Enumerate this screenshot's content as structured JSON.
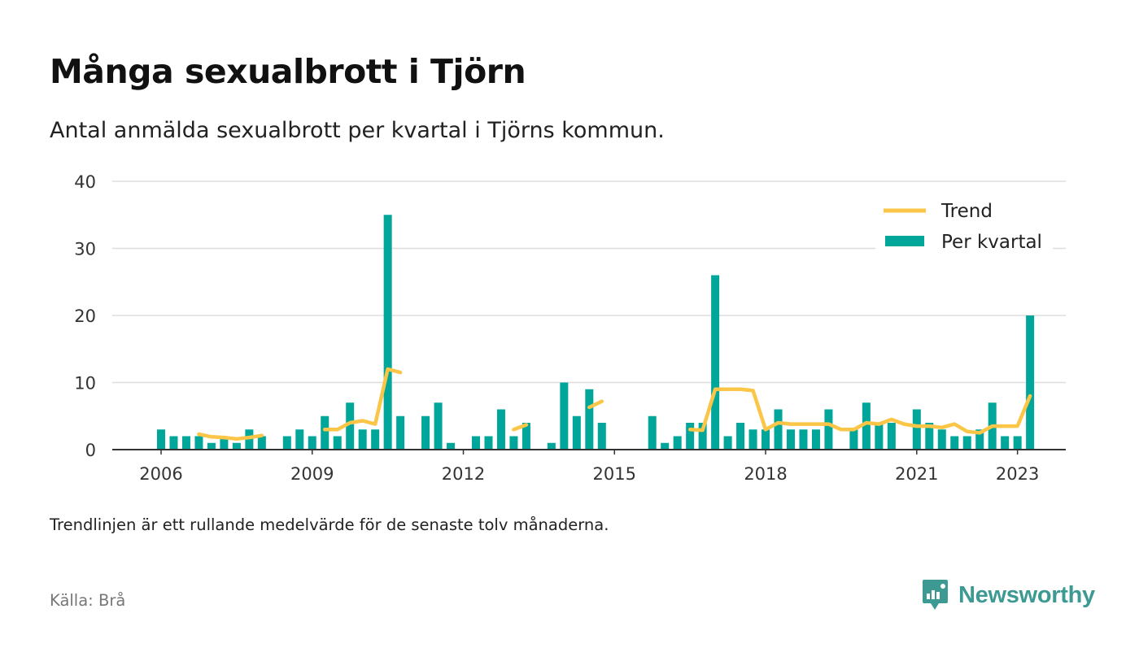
{
  "header": {
    "title": "Många sexualbrott i Tjörn",
    "subtitle": "Antal anmälda sexualbrott per kvartal i Tjörns kommun."
  },
  "footer": {
    "note": "Trendlinjen är ett rullande medelvärde för de senaste tolv månaderna.",
    "source": "Källa: Brå",
    "brand": "Newsworthy"
  },
  "colors": {
    "bars": "#00a69a",
    "trend": "#fbc547",
    "grid": "#dddddd",
    "axis": "#333333",
    "brand": "#3d9a93"
  },
  "chart_data": {
    "type": "bar",
    "x_start_quarter": "2006-Q1",
    "x_ticks": [
      "2006",
      "2009",
      "2012",
      "2015",
      "2018",
      "2021",
      "2023"
    ],
    "y_ticks": [
      0,
      10,
      20,
      30,
      40
    ],
    "ylim": [
      0,
      40
    ],
    "grid": true,
    "legend": {
      "position": "top-right",
      "items": [
        "Trend",
        "Per kvartal"
      ]
    },
    "series": [
      {
        "name": "Per kvartal",
        "kind": "bar",
        "values": [
          3,
          2,
          2,
          2,
          1,
          2,
          1,
          3,
          2,
          null,
          2,
          3,
          2,
          5,
          2,
          7,
          3,
          3,
          35,
          5,
          null,
          5,
          7,
          1,
          null,
          2,
          2,
          6,
          2,
          4,
          null,
          1,
          10,
          5,
          9,
          4,
          null,
          null,
          null,
          5,
          1,
          2,
          4,
          4,
          26,
          2,
          4,
          3,
          3,
          6,
          3,
          3,
          3,
          6,
          null,
          3,
          7,
          4,
          4,
          null,
          6,
          4,
          3,
          2,
          2,
          3,
          7,
          2,
          2,
          20
        ]
      },
      {
        "name": "Trend",
        "kind": "line",
        "values": [
          null,
          null,
          null,
          2.3,
          1.9,
          1.8,
          1.6,
          1.8,
          2.1,
          null,
          null,
          null,
          null,
          3.0,
          3.0,
          4.0,
          4.3,
          3.8,
          12.0,
          11.5,
          null,
          null,
          null,
          null,
          null,
          null,
          null,
          null,
          3.0,
          3.7,
          null,
          null,
          null,
          null,
          6.3,
          7.2,
          null,
          null,
          null,
          null,
          null,
          null,
          3.0,
          2.9,
          9.0,
          9.0,
          9.0,
          8.8,
          3.0,
          4.0,
          3.8,
          3.8,
          3.8,
          3.8,
          3.0,
          3.0,
          4.0,
          3.8,
          4.5,
          3.8,
          3.5,
          3.5,
          3.3,
          3.8,
          2.7,
          2.5,
          3.5,
          3.5,
          3.5,
          8.0
        ]
      }
    ]
  }
}
